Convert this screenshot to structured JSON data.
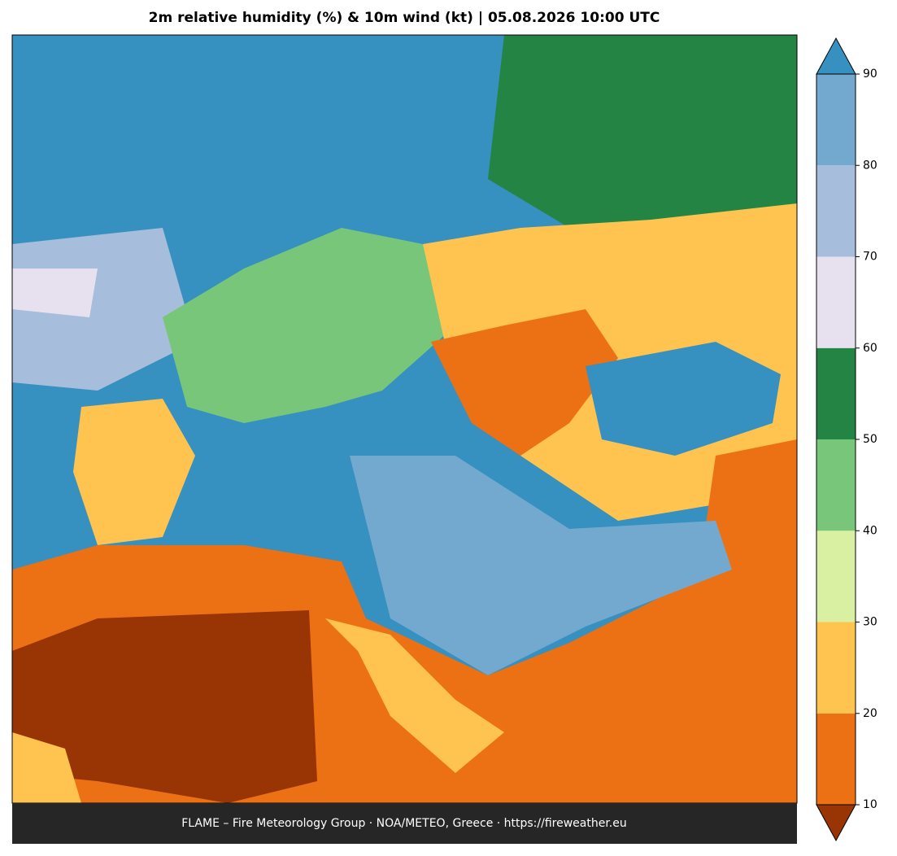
{
  "title": "2m relative humidity (%) & 10m wind (kt)  |  05.08.2026 10:00 UTC",
  "footer": "FLAME – Fire Meteorology Group · NOA/METEO, Greece · https://fireweather.eu",
  "colorbar": {
    "ticks": [
      10,
      20,
      30,
      40,
      50,
      60,
      70,
      80,
      90
    ],
    "colors": [
      "#993404",
      "#ec7014",
      "#fec44f",
      "#d9f0a3",
      "#78c679",
      "#238443",
      "#e7e1ef",
      "#a6bddb",
      "#74a9cf",
      "#3690c0"
    ],
    "extend": "both"
  }
}
